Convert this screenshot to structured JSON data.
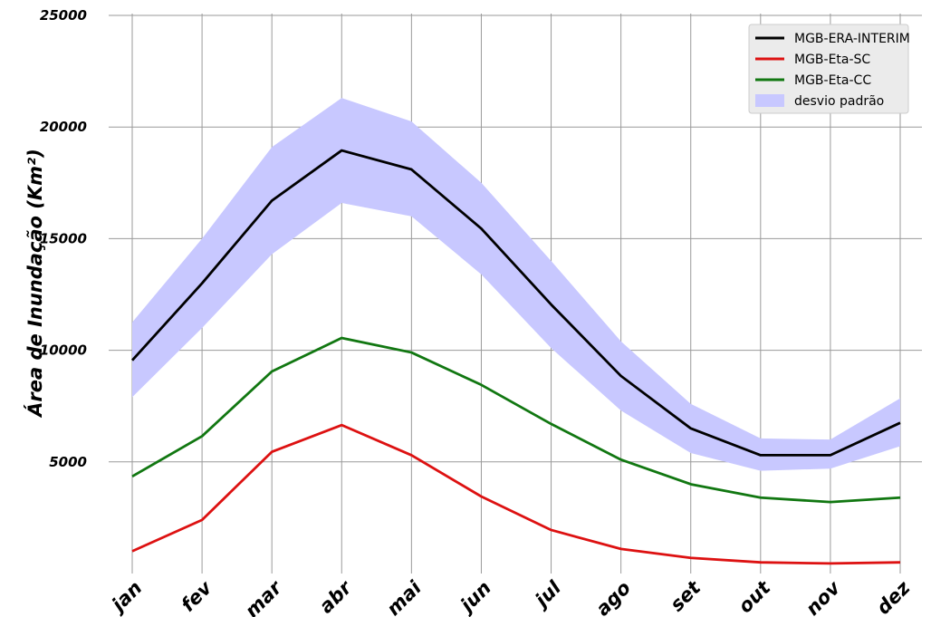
{
  "chart_data": {
    "type": "line",
    "title": "",
    "xlabel": "",
    "ylabel": "Área de Inundação (Km²)",
    "categories": [
      "jan",
      "fev",
      "mar",
      "abr",
      "mai",
      "jun",
      "jul",
      "ago",
      "set",
      "out",
      "nov",
      "dez"
    ],
    "ylim": [
      0,
      25000
    ],
    "yticks": [
      5000,
      10000,
      15000,
      20000,
      25000
    ],
    "grid": true,
    "legend_position": "top-right",
    "series": [
      {
        "name": "MGB-ERA-INTERIM",
        "color": "#000000",
        "values": [
          9550,
          13000,
          16700,
          18950,
          18100,
          15450,
          12050,
          8850,
          6500,
          5300,
          5300,
          6750
        ]
      },
      {
        "name": "MGB-Eta-SC",
        "color": "#dd1111",
        "values": [
          1000,
          2400,
          5450,
          6650,
          5300,
          3450,
          1950,
          1100,
          700,
          500,
          450,
          500
        ]
      },
      {
        "name": "MGB-Eta-CC",
        "color": "#117711",
        "values": [
          4350,
          6150,
          9050,
          10550,
          9900,
          8450,
          6700,
          5100,
          4000,
          3400,
          3200,
          3400
        ]
      }
    ],
    "band": {
      "name": "desvio padrão",
      "color": "#c8c8ff",
      "upper": [
        11250,
        15000,
        19100,
        21300,
        20250,
        17500,
        14000,
        10400,
        7600,
        6050,
        6000,
        7850
      ],
      "lower": [
        7900,
        11000,
        14300,
        16600,
        16000,
        13400,
        10100,
        7300,
        5400,
        4600,
        4700,
        5700
      ]
    }
  }
}
